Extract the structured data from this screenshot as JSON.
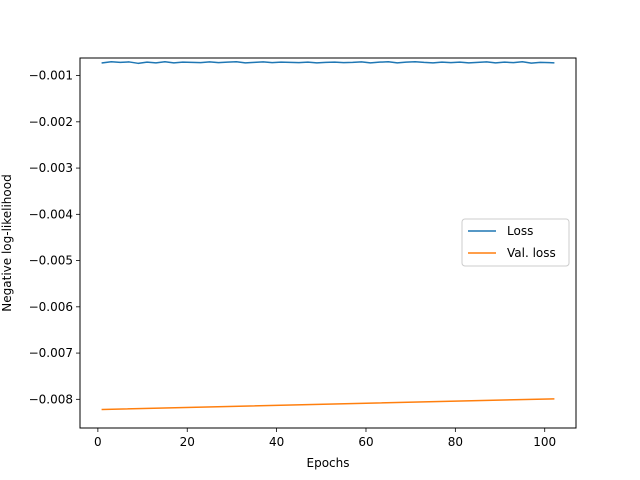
{
  "chart_data": {
    "type": "line",
    "xlabel": "Epochs",
    "ylabel": "Negative log-likelihood",
    "xlim": [
      -4,
      107
    ],
    "ylim": [
      -0.00862,
      -0.00062
    ],
    "xticks": [
      0,
      20,
      40,
      60,
      80,
      100
    ],
    "yticks": [
      -0.001,
      -0.002,
      -0.003,
      -0.004,
      -0.005,
      -0.006,
      -0.007,
      -0.008
    ],
    "xtick_labels": [
      "0",
      "20",
      "40",
      "60",
      "80",
      "100"
    ],
    "ytick_labels": [
      "−0.001",
      "−0.002",
      "−0.003",
      "−0.004",
      "−0.005",
      "−0.006",
      "−0.007",
      "−0.008"
    ],
    "legend_position": "center-right",
    "grid": false,
    "series": [
      {
        "name": "Loss",
        "color": "#1f77b4",
        "x": [
          1,
          3,
          5,
          7,
          9,
          11,
          13,
          15,
          17,
          19,
          21,
          23,
          25,
          27,
          29,
          31,
          33,
          35,
          37,
          39,
          41,
          43,
          45,
          47,
          49,
          51,
          53,
          55,
          57,
          59,
          61,
          63,
          65,
          67,
          69,
          71,
          73,
          75,
          77,
          79,
          81,
          83,
          85,
          87,
          89,
          91,
          93,
          95,
          97,
          99,
          101,
          102
        ],
        "y": [
          -0.000725,
          -0.0007,
          -0.000715,
          -0.000705,
          -0.000735,
          -0.00071,
          -0.000725,
          -0.0007,
          -0.000725,
          -0.00071,
          -0.000715,
          -0.00072,
          -0.000705,
          -0.00072,
          -0.00071,
          -0.0007,
          -0.000725,
          -0.000715,
          -0.000705,
          -0.00072,
          -0.00071,
          -0.000715,
          -0.00072,
          -0.00071,
          -0.000725,
          -0.000715,
          -0.00071,
          -0.00072,
          -0.000715,
          -0.000705,
          -0.000725,
          -0.00071,
          -0.0007,
          -0.000725,
          -0.00071,
          -0.0007,
          -0.000715,
          -0.000725,
          -0.00071,
          -0.00072,
          -0.00071,
          -0.000725,
          -0.000715,
          -0.000705,
          -0.000725,
          -0.00071,
          -0.00072,
          -0.0007,
          -0.00073,
          -0.000715,
          -0.00072,
          -0.000725
        ]
      },
      {
        "name": "Val. loss",
        "color": "#ff7f0e",
        "x": [
          1,
          102
        ],
        "y": [
          -0.00822,
          -0.00799
        ]
      }
    ]
  }
}
